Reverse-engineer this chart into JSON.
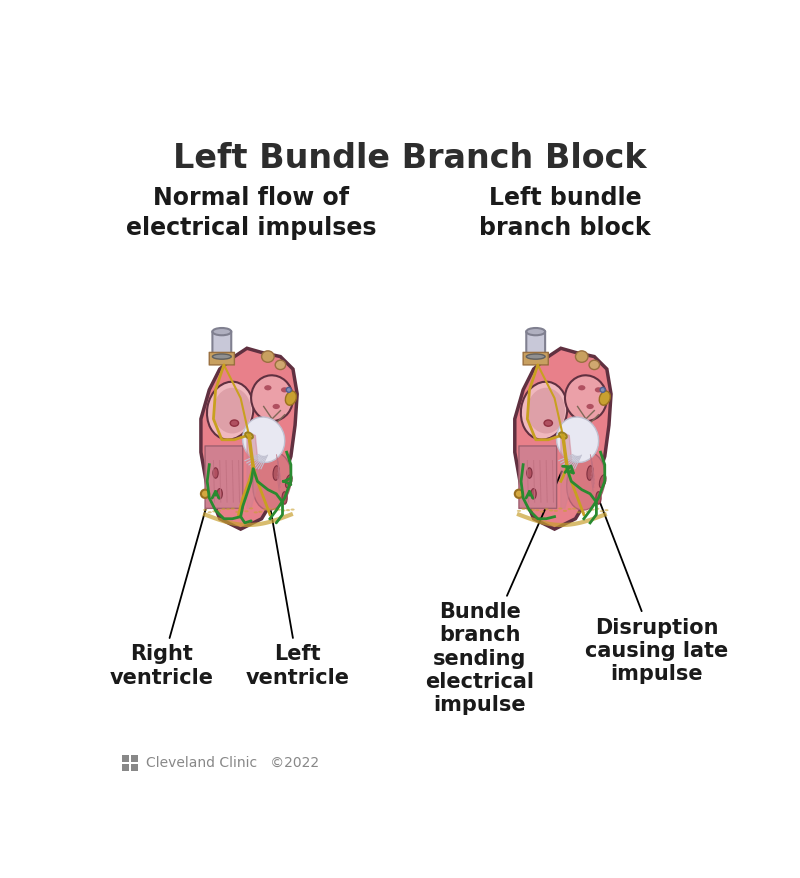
{
  "title": "Left Bundle Branch Block",
  "title_fontsize": 24,
  "title_color": "#2d2d2d",
  "title_fontweight": "bold",
  "bg_color": "#ffffff",
  "left_subtitle": "Normal flow of\nelectrical impulses",
  "right_subtitle": "Left bundle\nbranch block",
  "subtitle_fontsize": 17,
  "subtitle_fontweight": "bold",
  "subtitle_color": "#1a1a1a",
  "label_fontsize": 15,
  "label_color": "#1a1a1a",
  "label_fontweight": "bold",
  "footer_fontsize": 10,
  "footer_color": "#888888",
  "heart_body_color": "#e8808a",
  "heart_outer_color": "#d07080",
  "heart_inner_pink": "#f0a0a8",
  "heart_light": "#f5c0c8",
  "atria_color": "#e898a0",
  "atria_light": "#f0b8be",
  "vessel_gray": "#c8c8d8",
  "vessel_tan": "#c8a878",
  "vessel_gold": "#d4a840",
  "white_valve": "#e8e8f0",
  "yellow_pathway": "#c8a020",
  "green_pathway": "#2a8a30",
  "dark_red": "#903040",
  "papillary": "#c05060",
  "outline_color": "#603040"
}
